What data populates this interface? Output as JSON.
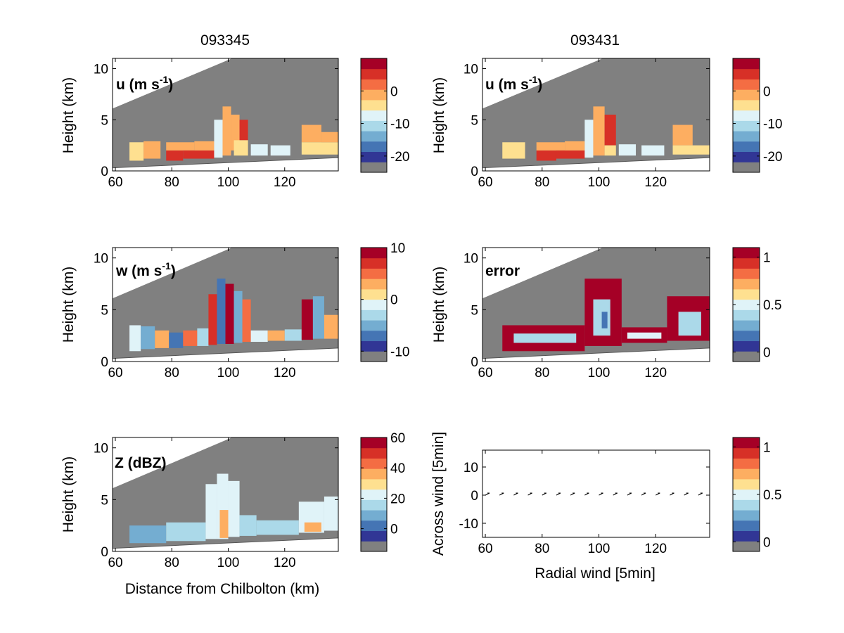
{
  "chart_data": [
    {
      "type": "heatmap",
      "panel": "u-093345",
      "title": "093345",
      "annotation": "u (m s",
      "annotation_sup": "-1",
      "annotation_close": ")",
      "xlabel": "",
      "ylabel": "Height (km)",
      "xlim": [
        59,
        139
      ],
      "ylim": [
        0,
        11
      ],
      "xticks": [
        "60",
        "80",
        "100",
        "120"
      ],
      "yticks": [
        "0",
        "5",
        "10"
      ],
      "colorbar": {
        "ticks": [
          "0",
          "-10",
          "-20"
        ],
        "tick_values": [
          0,
          -10,
          -20
        ],
        "range": [
          -25,
          10
        ]
      },
      "cells": [
        {
          "x0": 65,
          "x1": 70,
          "y0": 1.0,
          "y1": 2.8,
          "v": -5
        },
        {
          "x0": 70,
          "x1": 76,
          "y0": 1.2,
          "y1": 2.9,
          "v": -4
        },
        {
          "x0": 78,
          "x1": 84,
          "y0": 1.0,
          "y1": 2.0,
          "v": 4
        },
        {
          "x0": 78,
          "x1": 88,
          "y0": 2.0,
          "y1": 2.8,
          "v": -2
        },
        {
          "x0": 84,
          "x1": 95,
          "y0": 1.2,
          "y1": 2.0,
          "v": 5
        },
        {
          "x0": 88,
          "x1": 95,
          "y0": 2.0,
          "y1": 2.9,
          "v": -3
        },
        {
          "x0": 95,
          "x1": 98,
          "y0": 1.3,
          "y1": 5.0,
          "v": -8
        },
        {
          "x0": 98,
          "x1": 101,
          "y0": 1.5,
          "y1": 6.3,
          "v": -2
        },
        {
          "x0": 101,
          "x1": 104,
          "y0": 2.0,
          "y1": 5.5,
          "v": -1
        },
        {
          "x0": 104,
          "x1": 107,
          "y0": 3.0,
          "y1": 5.0,
          "v": 4
        },
        {
          "x0": 102,
          "x1": 107,
          "y0": 1.5,
          "y1": 3.0,
          "v": -6
        },
        {
          "x0": 108,
          "x1": 114,
          "y0": 1.5,
          "y1": 2.6,
          "v": -8
        },
        {
          "x0": 115,
          "x1": 122,
          "y0": 1.5,
          "y1": 2.5,
          "v": -9
        },
        {
          "x0": 126,
          "x1": 133,
          "y0": 2.8,
          "y1": 4.5,
          "v": -2
        },
        {
          "x0": 126,
          "x1": 139,
          "y0": 1.6,
          "y1": 2.8,
          "v": -7
        },
        {
          "x0": 133,
          "x1": 139,
          "y0": 2.8,
          "y1": 3.8,
          "v": -4
        }
      ]
    },
    {
      "type": "heatmap",
      "panel": "u-093431",
      "title": "093431",
      "annotation": "u (m s",
      "annotation_sup": "-1",
      "annotation_close": ")",
      "xlabel": "",
      "ylabel": "Height (km)",
      "xlim": [
        59,
        139
      ],
      "ylim": [
        0,
        11
      ],
      "xticks": [
        "60",
        "80",
        "100",
        "120"
      ],
      "yticks": [
        "0",
        "5",
        "10"
      ],
      "colorbar": {
        "ticks": [
          "0",
          "-10",
          "-20"
        ],
        "tick_values": [
          0,
          -10,
          -20
        ],
        "range": [
          -25,
          10
        ]
      },
      "cells": [
        {
          "x0": 66,
          "x1": 74,
          "y0": 1.2,
          "y1": 2.8,
          "v": -5
        },
        {
          "x0": 78,
          "x1": 85,
          "y0": 1.0,
          "y1": 2.0,
          "v": 5
        },
        {
          "x0": 78,
          "x1": 88,
          "y0": 2.0,
          "y1": 2.8,
          "v": -2
        },
        {
          "x0": 85,
          "x1": 95,
          "y0": 1.2,
          "y1": 2.0,
          "v": 4
        },
        {
          "x0": 88,
          "x1": 95,
          "y0": 2.0,
          "y1": 2.9,
          "v": -3
        },
        {
          "x0": 95,
          "x1": 98,
          "y0": 1.3,
          "y1": 5.0,
          "v": -8
        },
        {
          "x0": 98,
          "x1": 102,
          "y0": 1.5,
          "y1": 6.3,
          "v": -2
        },
        {
          "x0": 102,
          "x1": 106,
          "y0": 2.5,
          "y1": 5.5,
          "v": 3
        },
        {
          "x0": 102,
          "x1": 106,
          "y0": 1.5,
          "y1": 2.5,
          "v": -6
        },
        {
          "x0": 107,
          "x1": 113,
          "y0": 1.5,
          "y1": 2.6,
          "v": -9
        },
        {
          "x0": 115,
          "x1": 123,
          "y0": 1.5,
          "y1": 2.5,
          "v": -8
        },
        {
          "x0": 126,
          "x1": 133,
          "y0": 2.5,
          "y1": 4.5,
          "v": -2
        },
        {
          "x0": 126,
          "x1": 139,
          "y0": 1.6,
          "y1": 2.5,
          "v": -7
        }
      ]
    },
    {
      "type": "heatmap",
      "panel": "w-093345",
      "annotation": "w (m s",
      "annotation_sup": "-1",
      "annotation_close": ")",
      "xlabel": "",
      "ylabel": "Height (km)",
      "xlim": [
        59,
        139
      ],
      "ylim": [
        0,
        11
      ],
      "xticks": [
        "60",
        "80",
        "100",
        "120"
      ],
      "yticks": [
        "0",
        "5",
        "10"
      ],
      "colorbar": {
        "ticks": [
          "10",
          "0",
          "-10"
        ],
        "tick_values": [
          10,
          0,
          -10
        ],
        "range": [
          -12,
          10
        ]
      },
      "cells": [
        {
          "x0": 65,
          "x1": 69,
          "y0": 1.0,
          "y1": 3.5,
          "v": -3
        },
        {
          "x0": 69,
          "x1": 74,
          "y0": 1.2,
          "y1": 3.4,
          "v": -7
        },
        {
          "x0": 74,
          "x1": 79,
          "y0": 1.3,
          "y1": 3.0,
          "v": 2
        },
        {
          "x0": 79,
          "x1": 84,
          "y0": 1.3,
          "y1": 2.8,
          "v": -8
        },
        {
          "x0": 84,
          "x1": 89,
          "y0": 1.5,
          "y1": 3.0,
          "v": 4
        },
        {
          "x0": 89,
          "x1": 93,
          "y0": 1.5,
          "y1": 3.2,
          "v": -4
        },
        {
          "x0": 93,
          "x1": 96,
          "y0": 1.6,
          "y1": 6.5,
          "v": 7
        },
        {
          "x0": 96,
          "x1": 99,
          "y0": 1.7,
          "y1": 8.0,
          "v": -9
        },
        {
          "x0": 99,
          "x1": 102,
          "y0": 1.7,
          "y1": 7.5,
          "v": 8
        },
        {
          "x0": 102,
          "x1": 105,
          "y0": 1.8,
          "y1": 6.8,
          "v": -6
        },
        {
          "x0": 105,
          "x1": 108,
          "y0": 1.9,
          "y1": 6.0,
          "v": 5
        },
        {
          "x0": 108,
          "x1": 114,
          "y0": 1.9,
          "y1": 3.0,
          "v": -2
        },
        {
          "x0": 114,
          "x1": 120,
          "y0": 2.0,
          "y1": 3.0,
          "v": 3
        },
        {
          "x0": 120,
          "x1": 126,
          "y0": 2.0,
          "y1": 3.1,
          "v": -4
        },
        {
          "x0": 126,
          "x1": 130,
          "y0": 2.1,
          "y1": 6.0,
          "v": 9
        },
        {
          "x0": 130,
          "x1": 134,
          "y0": 2.2,
          "y1": 6.3,
          "v": -7
        },
        {
          "x0": 134,
          "x1": 139,
          "y0": 2.2,
          "y1": 4.5,
          "v": 2
        }
      ]
    },
    {
      "type": "heatmap",
      "panel": "error-093431",
      "annotation": "error",
      "annotation_sup": "",
      "annotation_close": "",
      "xlabel": "",
      "ylabel": "Height (km)",
      "xlim": [
        59,
        139
      ],
      "ylim": [
        0,
        11
      ],
      "xticks": [
        "60",
        "80",
        "100",
        "120"
      ],
      "yticks": [
        "0",
        "5",
        "10"
      ],
      "colorbar": {
        "ticks": [
          "1",
          "0.5",
          "0"
        ],
        "tick_values": [
          1,
          0.5,
          0
        ],
        "range": [
          -0.1,
          1.1
        ]
      },
      "cells": [
        {
          "x0": 66,
          "x1": 95,
          "y0": 1.0,
          "y1": 3.5,
          "v": 1.05
        },
        {
          "x0": 95,
          "x1": 108,
          "y0": 1.5,
          "y1": 8.0,
          "v": 1.05
        },
        {
          "x0": 108,
          "x1": 124,
          "y0": 1.8,
          "y1": 3.3,
          "v": 1.05
        },
        {
          "x0": 124,
          "x1": 139,
          "y0": 2.0,
          "y1": 6.3,
          "v": 1.05
        },
        {
          "x0": 70,
          "x1": 92,
          "y0": 1.8,
          "y1": 2.7,
          "v": 0.35
        },
        {
          "x0": 98,
          "x1": 104,
          "y0": 2.5,
          "y1": 6.0,
          "v": 0.3
        },
        {
          "x0": 101,
          "x1": 103,
          "y0": 3.2,
          "y1": 4.8,
          "v": 0.05
        },
        {
          "x0": 110,
          "x1": 122,
          "y0": 2.2,
          "y1": 2.8,
          "v": 0.4
        },
        {
          "x0": 128,
          "x1": 136,
          "y0": 2.5,
          "y1": 4.8,
          "v": 0.3
        }
      ]
    },
    {
      "type": "heatmap",
      "panel": "Z-093345",
      "annotation": "Z (dBZ)",
      "annotation_sup": "",
      "annotation_close": "",
      "xlabel": "Distance from Chilbolton (km)",
      "ylabel": "Height (km)",
      "xlim": [
        59,
        139
      ],
      "ylim": [
        0,
        11
      ],
      "xticks": [
        "60",
        "80",
        "100",
        "120"
      ],
      "yticks": [
        "0",
        "5",
        "10"
      ],
      "colorbar": {
        "ticks": [
          "60",
          "40",
          "20",
          "0"
        ],
        "tick_values": [
          60,
          40,
          20,
          0
        ],
        "range": [
          -15,
          60
        ]
      },
      "cells": [
        {
          "x0": 65,
          "x1": 78,
          "y0": 0.8,
          "y1": 2.5,
          "v": 5
        },
        {
          "x0": 78,
          "x1": 92,
          "y0": 1.0,
          "y1": 2.8,
          "v": 12
        },
        {
          "x0": 92,
          "x1": 96,
          "y0": 1.2,
          "y1": 6.5,
          "v": 18
        },
        {
          "x0": 96,
          "x1": 100,
          "y0": 1.2,
          "y1": 7.5,
          "v": 22
        },
        {
          "x0": 97,
          "x1": 100,
          "y0": 1.3,
          "y1": 4.0,
          "v": 35
        },
        {
          "x0": 100,
          "x1": 104,
          "y0": 1.4,
          "y1": 6.8,
          "v": 16
        },
        {
          "x0": 104,
          "x1": 110,
          "y0": 1.5,
          "y1": 3.5,
          "v": 8
        },
        {
          "x0": 110,
          "x1": 125,
          "y0": 1.6,
          "y1": 3.0,
          "v": 14
        },
        {
          "x0": 125,
          "x1": 134,
          "y0": 1.8,
          "y1": 4.8,
          "v": 18
        },
        {
          "x0": 127,
          "x1": 133,
          "y0": 1.9,
          "y1": 2.8,
          "v": 32
        },
        {
          "x0": 134,
          "x1": 139,
          "y0": 2.0,
          "y1": 5.3,
          "v": 20
        }
      ]
    },
    {
      "type": "quiver",
      "panel": "wind-093431",
      "xlabel": "Radial wind [5min]",
      "ylabel": "Across wind [5min]",
      "xlim": [
        59,
        139
      ],
      "ylim": [
        -15,
        16
      ],
      "xticks": [
        "60",
        "80",
        "100",
        "120"
      ],
      "yticks": [
        "10",
        "0",
        "-10"
      ],
      "xtick_values": [
        60,
        80,
        100,
        120
      ],
      "ytick_values": [
        10,
        0,
        -10
      ],
      "colorbar": {
        "ticks": [
          "1",
          "0.5",
          "0"
        ],
        "tick_values": [
          1,
          0.5,
          0
        ],
        "range": [
          -0.1,
          1.1
        ]
      },
      "arrows": [
        {
          "x": 60,
          "u": 2,
          "v": 1
        },
        {
          "x": 65,
          "u": 2,
          "v": 1
        },
        {
          "x": 70,
          "u": 2,
          "v": 1
        },
        {
          "x": 75,
          "u": 2,
          "v": 1
        },
        {
          "x": 80,
          "u": 2,
          "v": 1
        },
        {
          "x": 85,
          "u": 2,
          "v": 1
        },
        {
          "x": 90,
          "u": 2,
          "v": 1
        },
        {
          "x": 95,
          "u": 2,
          "v": 1
        },
        {
          "x": 100,
          "u": 2,
          "v": 1
        },
        {
          "x": 105,
          "u": 2,
          "v": 1
        },
        {
          "x": 110,
          "u": 2,
          "v": 1
        },
        {
          "x": 115,
          "u": 2,
          "v": 1
        },
        {
          "x": 120,
          "u": 2,
          "v": 1
        },
        {
          "x": 125,
          "u": 2,
          "v": 1
        },
        {
          "x": 130,
          "u": 2,
          "v": 1
        },
        {
          "x": 135,
          "u": 2,
          "v": 1
        }
      ]
    }
  ],
  "colors": {
    "scale": [
      "#313695",
      "#4575b4",
      "#74add1",
      "#abd9e9",
      "#e0f3f8",
      "#fee090",
      "#fdae61",
      "#f46d43",
      "#d73027",
      "#a50026"
    ],
    "masked": "#808080"
  }
}
